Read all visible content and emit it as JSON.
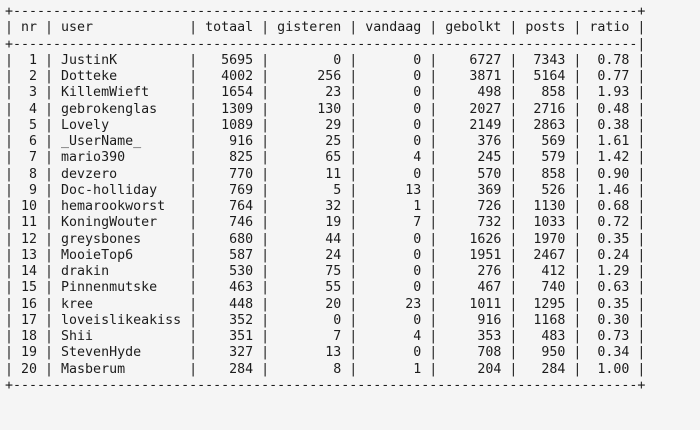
{
  "window": {
    "background_color": "#f5f5f5",
    "text_color": "#1c1c1c"
  },
  "table": {
    "columns": [
      "nr",
      "user",
      "totaal",
      "gisteren",
      "vandaag",
      "gebolkt",
      "posts",
      "ratio"
    ],
    "rows": [
      [
        1,
        "JustinK",
        5695,
        0,
        0,
        6727,
        7343,
        "0.78"
      ],
      [
        2,
        "Dotteke",
        4002,
        256,
        0,
        3871,
        5164,
        "0.77"
      ],
      [
        3,
        "KillemWieft",
        1654,
        23,
        0,
        498,
        858,
        "1.93"
      ],
      [
        4,
        "gebrokenglas",
        1309,
        130,
        0,
        2027,
        2716,
        "0.48"
      ],
      [
        5,
        "Lovely",
        1089,
        29,
        0,
        2149,
        2863,
        "0.38"
      ],
      [
        6,
        "_UserName_",
        916,
        25,
        0,
        376,
        569,
        "1.61"
      ],
      [
        7,
        "mario390",
        825,
        65,
        4,
        245,
        579,
        "1.42"
      ],
      [
        8,
        "devzero",
        770,
        11,
        0,
        570,
        858,
        "0.90"
      ],
      [
        9,
        "Doc-holliday",
        769,
        5,
        13,
        369,
        526,
        "1.46"
      ],
      [
        10,
        "hemarookworst",
        764,
        32,
        1,
        726,
        1130,
        "0.68"
      ],
      [
        11,
        "KoningWouter",
        746,
        19,
        7,
        732,
        1033,
        "0.72"
      ],
      [
        12,
        "greysbones",
        680,
        44,
        0,
        1626,
        1970,
        "0.35"
      ],
      [
        13,
        "MooieTop6",
        587,
        24,
        0,
        1951,
        2467,
        "0.24"
      ],
      [
        14,
        "drakin",
        530,
        75,
        0,
        276,
        412,
        "1.29"
      ],
      [
        15,
        "Pinnenmutske",
        463,
        55,
        0,
        467,
        740,
        "0.63"
      ],
      [
        16,
        "kree",
        448,
        20,
        23,
        1011,
        1295,
        "0.35"
      ],
      [
        17,
        "loveislikeakiss",
        352,
        0,
        0,
        916,
        1168,
        "0.30"
      ],
      [
        18,
        "Shii",
        351,
        7,
        4,
        353,
        483,
        "0.73"
      ],
      [
        19,
        "StevenHyde",
        327,
        13,
        0,
        708,
        950,
        "0.34"
      ],
      [
        20,
        "Masberum",
        284,
        8,
        1,
        204,
        284,
        "1.00"
      ]
    ]
  }
}
